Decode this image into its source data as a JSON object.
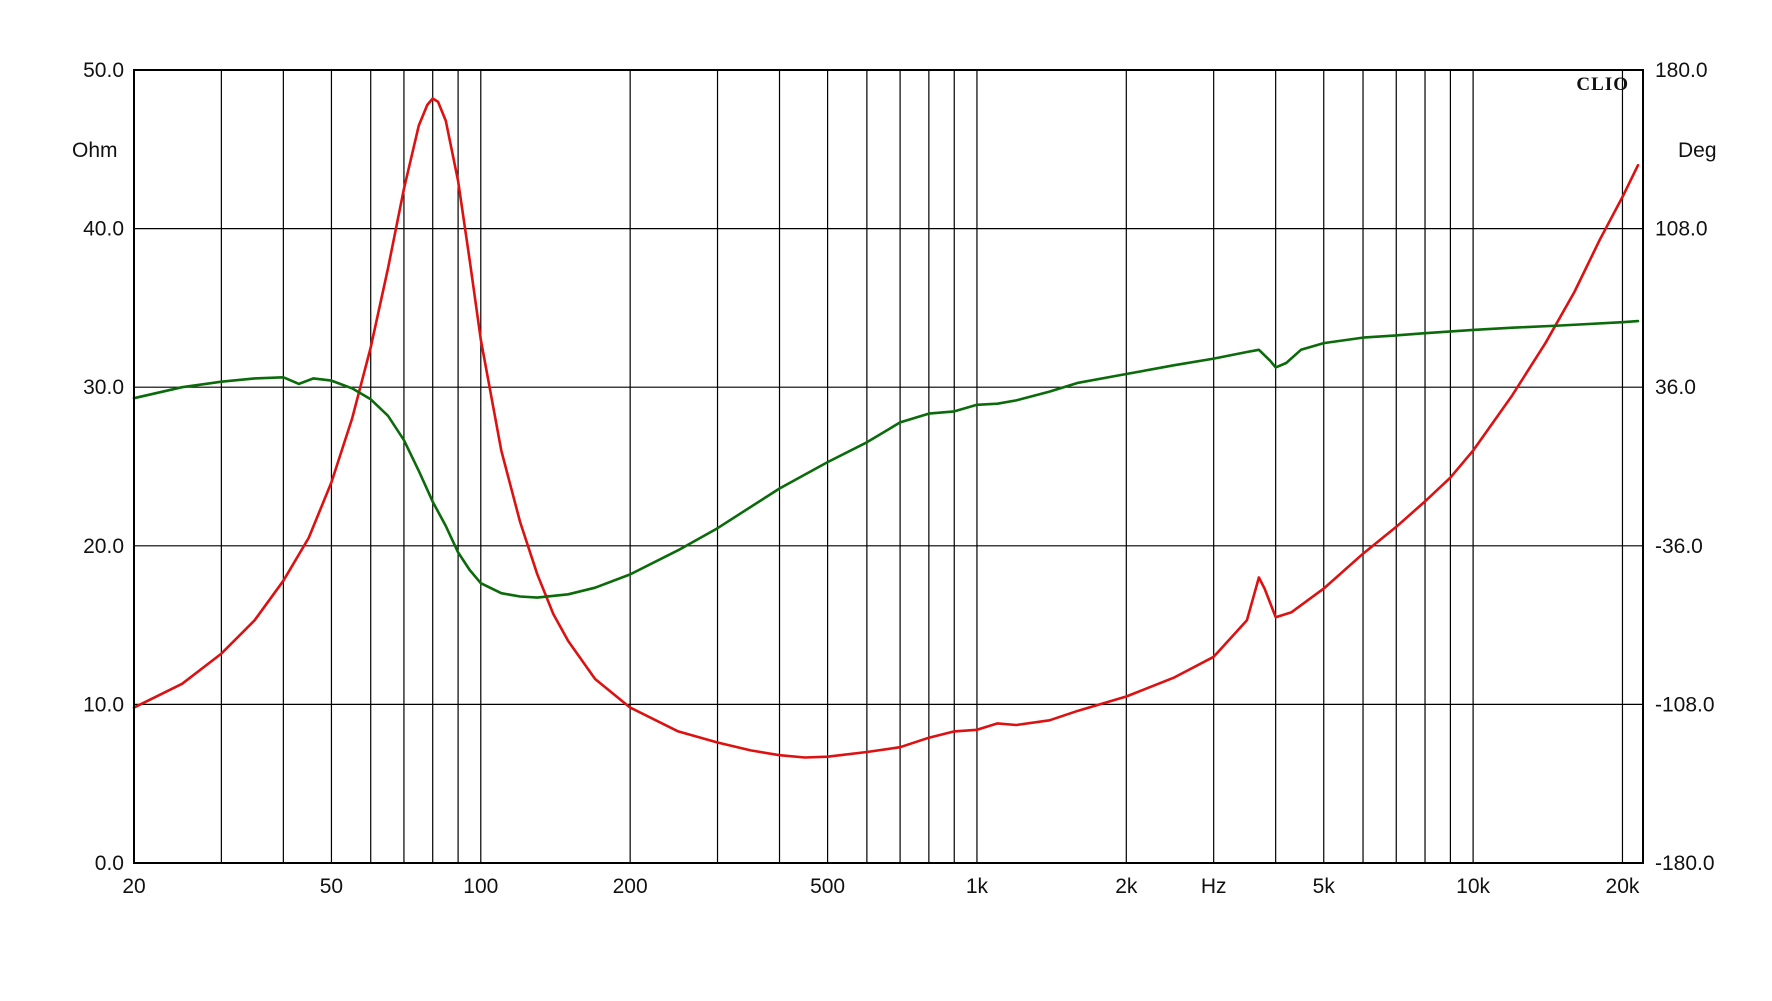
{
  "chart_data": {
    "type": "line",
    "brand": "CLIO",
    "x_unit_label": "Hz",
    "left_unit_label": "Ohm",
    "right_unit_label": "Deg",
    "x_scale": "log",
    "xlim": [
      20,
      22000
    ],
    "ylim_left": [
      0,
      50
    ],
    "ylim_right": [
      -180,
      180
    ],
    "grid": true,
    "x_tick_labels": [
      {
        "value": 20,
        "label": "20"
      },
      {
        "value": 50,
        "label": "50"
      },
      {
        "value": 100,
        "label": "100"
      },
      {
        "value": 200,
        "label": "200"
      },
      {
        "value": 500,
        "label": "500"
      },
      {
        "value": 1000,
        "label": "1k"
      },
      {
        "value": 2000,
        "label": "2k"
      },
      {
        "value": 3000,
        "label": "Hz"
      },
      {
        "value": 5000,
        "label": "5k"
      },
      {
        "value": 10000,
        "label": "10k"
      },
      {
        "value": 20000,
        "label": "20k"
      }
    ],
    "x_gridlines": [
      30,
      40,
      50,
      60,
      70,
      80,
      90,
      100,
      200,
      300,
      400,
      500,
      600,
      700,
      800,
      900,
      1000,
      2000,
      3000,
      4000,
      5000,
      6000,
      7000,
      8000,
      9000,
      10000,
      20000
    ],
    "left_ticks": [
      "0.0",
      "10.0",
      "20.0",
      "30.0",
      "40.0",
      "50.0"
    ],
    "right_ticks": [
      "-180.0",
      "-108.0",
      "-36.0",
      "36.0",
      "108.0",
      "180.0"
    ],
    "colors": {
      "impedance": "#dd1111",
      "phase": "#0b6b0b",
      "grid": "#000000"
    },
    "series": [
      {
        "axis": "left",
        "color": "#dd1111",
        "points": [
          [
            20,
            9.8
          ],
          [
            25,
            11.3
          ],
          [
            30,
            13.2
          ],
          [
            35,
            15.3
          ],
          [
            40,
            17.8
          ],
          [
            45,
            20.5
          ],
          [
            50,
            24.0
          ],
          [
            55,
            28.0
          ],
          [
            60,
            32.5
          ],
          [
            65,
            37.5
          ],
          [
            70,
            42.5
          ],
          [
            75,
            46.5
          ],
          [
            78,
            47.8
          ],
          [
            80,
            48.2
          ],
          [
            82,
            48.0
          ],
          [
            85,
            46.8
          ],
          [
            90,
            43.0
          ],
          [
            95,
            38.0
          ],
          [
            100,
            33.0
          ],
          [
            110,
            26.0
          ],
          [
            120,
            21.5
          ],
          [
            130,
            18.2
          ],
          [
            140,
            15.7
          ],
          [
            150,
            14.0
          ],
          [
            170,
            11.6
          ],
          [
            200,
            9.8
          ],
          [
            250,
            8.3
          ],
          [
            300,
            7.6
          ],
          [
            350,
            7.1
          ],
          [
            400,
            6.8
          ],
          [
            450,
            6.65
          ],
          [
            500,
            6.7
          ],
          [
            600,
            7.0
          ],
          [
            700,
            7.3
          ],
          [
            800,
            7.9
          ],
          [
            900,
            8.3
          ],
          [
            1000,
            8.4
          ],
          [
            1100,
            8.8
          ],
          [
            1200,
            8.7
          ],
          [
            1400,
            9.0
          ],
          [
            1600,
            9.6
          ],
          [
            2000,
            10.5
          ],
          [
            2500,
            11.7
          ],
          [
            3000,
            13.0
          ],
          [
            3500,
            15.3
          ],
          [
            3700,
            18.0
          ],
          [
            3800,
            17.3
          ],
          [
            4000,
            15.5
          ],
          [
            4300,
            15.8
          ],
          [
            5000,
            17.3
          ],
          [
            6000,
            19.5
          ],
          [
            7000,
            21.2
          ],
          [
            8000,
            22.8
          ],
          [
            9000,
            24.3
          ],
          [
            10000,
            26.0
          ],
          [
            12000,
            29.5
          ],
          [
            14000,
            32.8
          ],
          [
            16000,
            36.0
          ],
          [
            18000,
            39.3
          ],
          [
            20000,
            42.0
          ],
          [
            21500,
            44.0
          ]
        ]
      },
      {
        "axis": "right",
        "color": "#0b6b0b",
        "points": [
          [
            20,
            31.0
          ],
          [
            25,
            36.0
          ],
          [
            30,
            38.5
          ],
          [
            35,
            40.0
          ],
          [
            40,
            40.5
          ],
          [
            43,
            37.5
          ],
          [
            46,
            40.0
          ],
          [
            50,
            39.0
          ],
          [
            55,
            35.5
          ],
          [
            60,
            30.5
          ],
          [
            65,
            23.0
          ],
          [
            70,
            12.0
          ],
          [
            75,
            -2.0
          ],
          [
            80,
            -16.0
          ],
          [
            85,
            -27.0
          ],
          [
            90,
            -39.0
          ],
          [
            95,
            -47.0
          ],
          [
            100,
            -53.0
          ],
          [
            110,
            -57.5
          ],
          [
            120,
            -59.0
          ],
          [
            130,
            -59.5
          ],
          [
            150,
            -58.0
          ],
          [
            170,
            -55.0
          ],
          [
            200,
            -49.0
          ],
          [
            250,
            -38.0
          ],
          [
            300,
            -28.0
          ],
          [
            400,
            -10.0
          ],
          [
            500,
            2.0
          ],
          [
            600,
            11.0
          ],
          [
            700,
            20.0
          ],
          [
            800,
            24.0
          ],
          [
            900,
            25.0
          ],
          [
            1000,
            28.0
          ],
          [
            1100,
            28.5
          ],
          [
            1200,
            30.0
          ],
          [
            1400,
            34.0
          ],
          [
            1600,
            38.0
          ],
          [
            2000,
            42.0
          ],
          [
            2500,
            46.0
          ],
          [
            3000,
            49.0
          ],
          [
            3500,
            52.0
          ],
          [
            3700,
            53.0
          ],
          [
            3900,
            48.0
          ],
          [
            4000,
            45.0
          ],
          [
            4200,
            47.0
          ],
          [
            4500,
            53.0
          ],
          [
            5000,
            56.0
          ],
          [
            6000,
            58.5
          ],
          [
            7000,
            59.5
          ],
          [
            8000,
            60.5
          ],
          [
            10000,
            62.0
          ],
          [
            12000,
            63.0
          ],
          [
            15000,
            64.0
          ],
          [
            20000,
            65.5
          ],
          [
            21500,
            66.0
          ]
        ]
      }
    ]
  }
}
